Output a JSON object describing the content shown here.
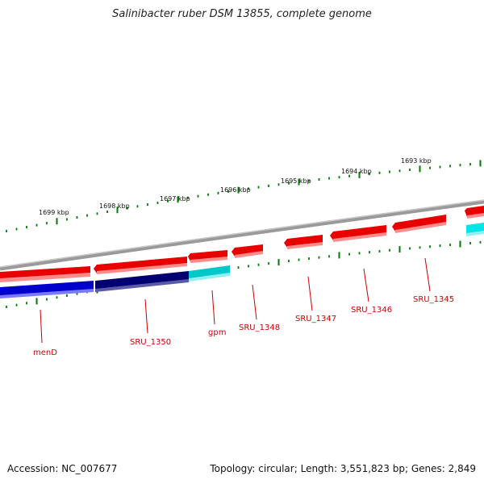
{
  "title": "Salinibacter ruber DSM 13855, complete genome",
  "footer": {
    "accession_label": "Accession:",
    "accession": "NC_007677",
    "topology_label": "Topology:",
    "topology": "circular",
    "length_label": "Length:",
    "length": "3,551,823 bp",
    "genes_label": "Genes:",
    "genes": "2,849"
  },
  "colors": {
    "backbone": "#808080",
    "forward_gene": "#e80000",
    "reverse_gene_blue": "#0000cc",
    "reverse_gene_dark": "#000070",
    "reverse_gene_cyan": "#00c8c8",
    "tick": "#007a00",
    "label": "#cc0000"
  },
  "scale_labels": [
    "1699 kbp",
    "1698 kbp",
    "1697 kbp",
    "1696 kbp",
    "1695 kbp",
    "1694 kbp",
    "1693 kbp"
  ],
  "genes": [
    {
      "name": "menD",
      "strand": "reverse",
      "color": "blue"
    },
    {
      "name": "SRU_1350",
      "strand": "reverse",
      "color": "dark-blue"
    },
    {
      "name": "gpm",
      "strand": "reverse",
      "color": "cyan"
    },
    {
      "name": "SRU_1348",
      "strand": "forward",
      "color": "red"
    },
    {
      "name": "SRU_1347",
      "strand": "forward",
      "color": "red"
    },
    {
      "name": "SRU_1346",
      "strand": "forward",
      "color": "red"
    },
    {
      "name": "SRU_1345",
      "strand": "forward",
      "color": "red"
    }
  ]
}
